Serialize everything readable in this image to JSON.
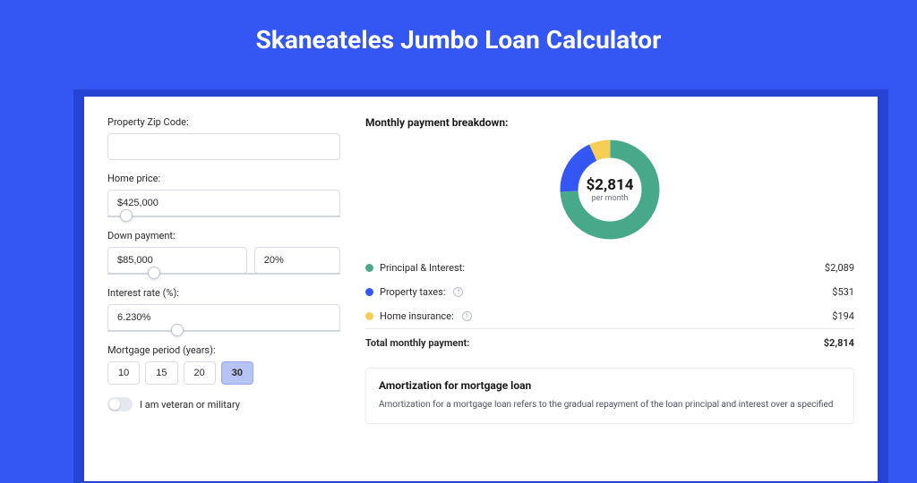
{
  "page": {
    "title": "Skaneateles Jumbo Loan Calculator",
    "bg_color": "#3456f3",
    "card_bg": "#ffffff",
    "shadow_color": "#2544d4"
  },
  "form": {
    "zip_label": "Property Zip Code:",
    "zip_value": "",
    "home_price_label": "Home price:",
    "home_price_value": "$425,000",
    "home_price_slider_pct": 8,
    "down_payment_label": "Down payment:",
    "down_payment_value": "$85,000",
    "down_payment_pct": "20%",
    "down_payment_slider_pct": 20,
    "interest_label": "Interest rate (%):",
    "interest_value": "6.230%",
    "interest_slider_pct": 30,
    "period_label": "Mortgage period (years):",
    "periods": [
      "10",
      "15",
      "20",
      "30"
    ],
    "period_selected": "30",
    "veteran_label": "I am veteran or military",
    "veteran_on": false
  },
  "results": {
    "breakdown_title": "Monthly payment breakdown:",
    "donut": {
      "amount": "$2,814",
      "sub": "per month",
      "segments": [
        {
          "label": "Principal & Interest:",
          "value": "$2,089",
          "pct": 74.2,
          "color": "#48a88a"
        },
        {
          "label": "Property taxes:",
          "value": "$531",
          "pct": 18.9,
          "color": "#3456f3",
          "has_info": true
        },
        {
          "label": "Home insurance:",
          "value": "$194",
          "pct": 6.9,
          "color": "#f5ce55",
          "has_info": true
        }
      ],
      "bg_color": "#ffffff"
    },
    "total_label": "Total monthly payment:",
    "total_value": "$2,814",
    "amort": {
      "title": "Amortization for mortgage loan",
      "text": "Amortization for a mortgage loan refers to the gradual repayment of the loan principal and interest over a specified"
    }
  }
}
